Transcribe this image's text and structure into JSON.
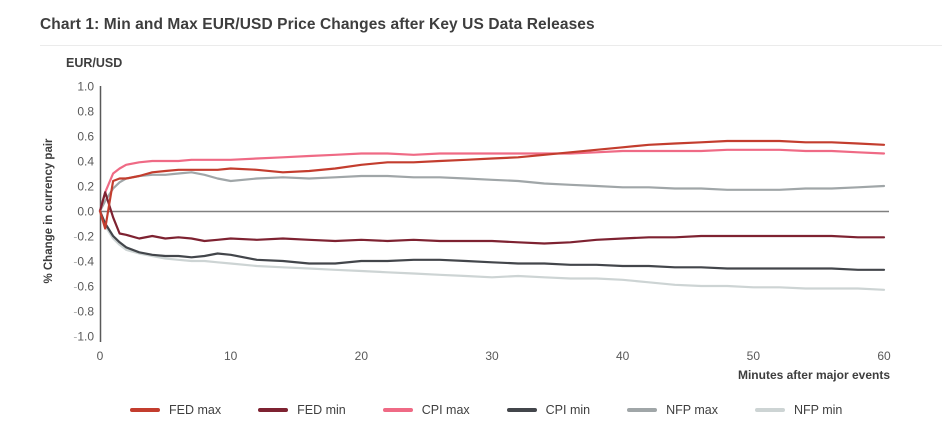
{
  "chart_data": {
    "type": "line",
    "title": "Chart 1: Min and Max EUR/USD Price Changes after Key US Data Releases",
    "y_axis_unit_label": "EUR/USD",
    "ylabel": "% Change in currency pair",
    "xlabel": "Minutes after major events",
    "xlim": [
      0,
      60
    ],
    "ylim": [
      -1.0,
      1.0
    ],
    "grid": false,
    "legend_position": "bottom",
    "axis_color": "#595959",
    "zero_line_color": "#808080",
    "tick_label_color": "#595959",
    "negative_sign_color": "#b3b3b3",
    "ytick_labels": [
      "1.0",
      "0.8",
      "0.6",
      "0.4",
      "0.2",
      "0.0",
      "-0.2",
      "-0.4",
      "-0.6",
      "-0.8",
      "-1.0"
    ],
    "xtick_labels": [
      "0",
      "10",
      "20",
      "30",
      "40",
      "50",
      "60"
    ],
    "x": [
      0,
      0.4,
      1,
      1.5,
      2,
      3,
      4,
      5,
      6,
      7,
      8,
      9,
      10,
      12,
      14,
      16,
      18,
      20,
      22,
      24,
      26,
      28,
      30,
      32,
      34,
      36,
      38,
      40,
      42,
      44,
      46,
      48,
      50,
      52,
      54,
      56,
      58,
      60
    ],
    "series": [
      {
        "name": "FED max",
        "color": "#c33d2e",
        "values": [
          0,
          -0.14,
          0.24,
          0.26,
          0.26,
          0.28,
          0.31,
          0.32,
          0.33,
          0.33,
          0.33,
          0.33,
          0.34,
          0.33,
          0.31,
          0.32,
          0.34,
          0.37,
          0.39,
          0.39,
          0.4,
          0.41,
          0.42,
          0.43,
          0.45,
          0.47,
          0.49,
          0.51,
          0.53,
          0.54,
          0.55,
          0.56,
          0.56,
          0.56,
          0.55,
          0.55,
          0.54,
          0.53
        ]
      },
      {
        "name": "FED min",
        "color": "#7e2231",
        "values": [
          0,
          0.15,
          -0.05,
          -0.18,
          -0.19,
          -0.22,
          -0.2,
          -0.22,
          -0.21,
          -0.22,
          -0.24,
          -0.23,
          -0.22,
          -0.23,
          -0.22,
          -0.23,
          -0.24,
          -0.23,
          -0.24,
          -0.23,
          -0.24,
          -0.24,
          -0.24,
          -0.25,
          -0.26,
          -0.25,
          -0.23,
          -0.22,
          -0.21,
          -0.21,
          -0.2,
          -0.2,
          -0.2,
          -0.2,
          -0.2,
          -0.2,
          -0.21,
          -0.21
        ]
      },
      {
        "name": "CPI max",
        "color": "#ef6a85",
        "values": [
          0,
          0.15,
          0.3,
          0.34,
          0.37,
          0.39,
          0.4,
          0.4,
          0.4,
          0.41,
          0.41,
          0.41,
          0.41,
          0.42,
          0.43,
          0.44,
          0.45,
          0.46,
          0.46,
          0.45,
          0.46,
          0.46,
          0.46,
          0.46,
          0.46,
          0.46,
          0.47,
          0.48,
          0.48,
          0.48,
          0.48,
          0.49,
          0.49,
          0.49,
          0.48,
          0.48,
          0.47,
          0.46
        ]
      },
      {
        "name": "CPI min",
        "color": "#43464b",
        "values": [
          0,
          -0.1,
          -0.2,
          -0.25,
          -0.29,
          -0.33,
          -0.35,
          -0.36,
          -0.36,
          -0.37,
          -0.36,
          -0.34,
          -0.35,
          -0.39,
          -0.4,
          -0.42,
          -0.42,
          -0.4,
          -0.4,
          -0.39,
          -0.39,
          -0.4,
          -0.41,
          -0.42,
          -0.42,
          -0.43,
          -0.43,
          -0.44,
          -0.44,
          -0.45,
          -0.45,
          -0.46,
          -0.46,
          -0.46,
          -0.46,
          -0.46,
          -0.47,
          -0.47
        ]
      },
      {
        "name": "NFP max",
        "color": "#a0a6a8",
        "values": [
          0,
          0.08,
          0.18,
          0.23,
          0.26,
          0.28,
          0.29,
          0.29,
          0.3,
          0.31,
          0.29,
          0.26,
          0.24,
          0.26,
          0.27,
          0.26,
          0.27,
          0.28,
          0.28,
          0.27,
          0.27,
          0.26,
          0.25,
          0.24,
          0.22,
          0.21,
          0.2,
          0.19,
          0.19,
          0.18,
          0.18,
          0.17,
          0.17,
          0.17,
          0.18,
          0.18,
          0.19,
          0.2
        ]
      },
      {
        "name": "NFP min",
        "color": "#cdd4d4",
        "values": [
          0,
          -0.12,
          -0.22,
          -0.27,
          -0.31,
          -0.34,
          -0.36,
          -0.38,
          -0.39,
          -0.4,
          -0.4,
          -0.41,
          -0.42,
          -0.44,
          -0.45,
          -0.46,
          -0.47,
          -0.48,
          -0.49,
          -0.5,
          -0.51,
          -0.52,
          -0.53,
          -0.52,
          -0.53,
          -0.54,
          -0.54,
          -0.55,
          -0.57,
          -0.59,
          -0.6,
          -0.6,
          -0.61,
          -0.61,
          -0.62,
          -0.62,
          -0.62,
          -0.63
        ]
      }
    ]
  }
}
